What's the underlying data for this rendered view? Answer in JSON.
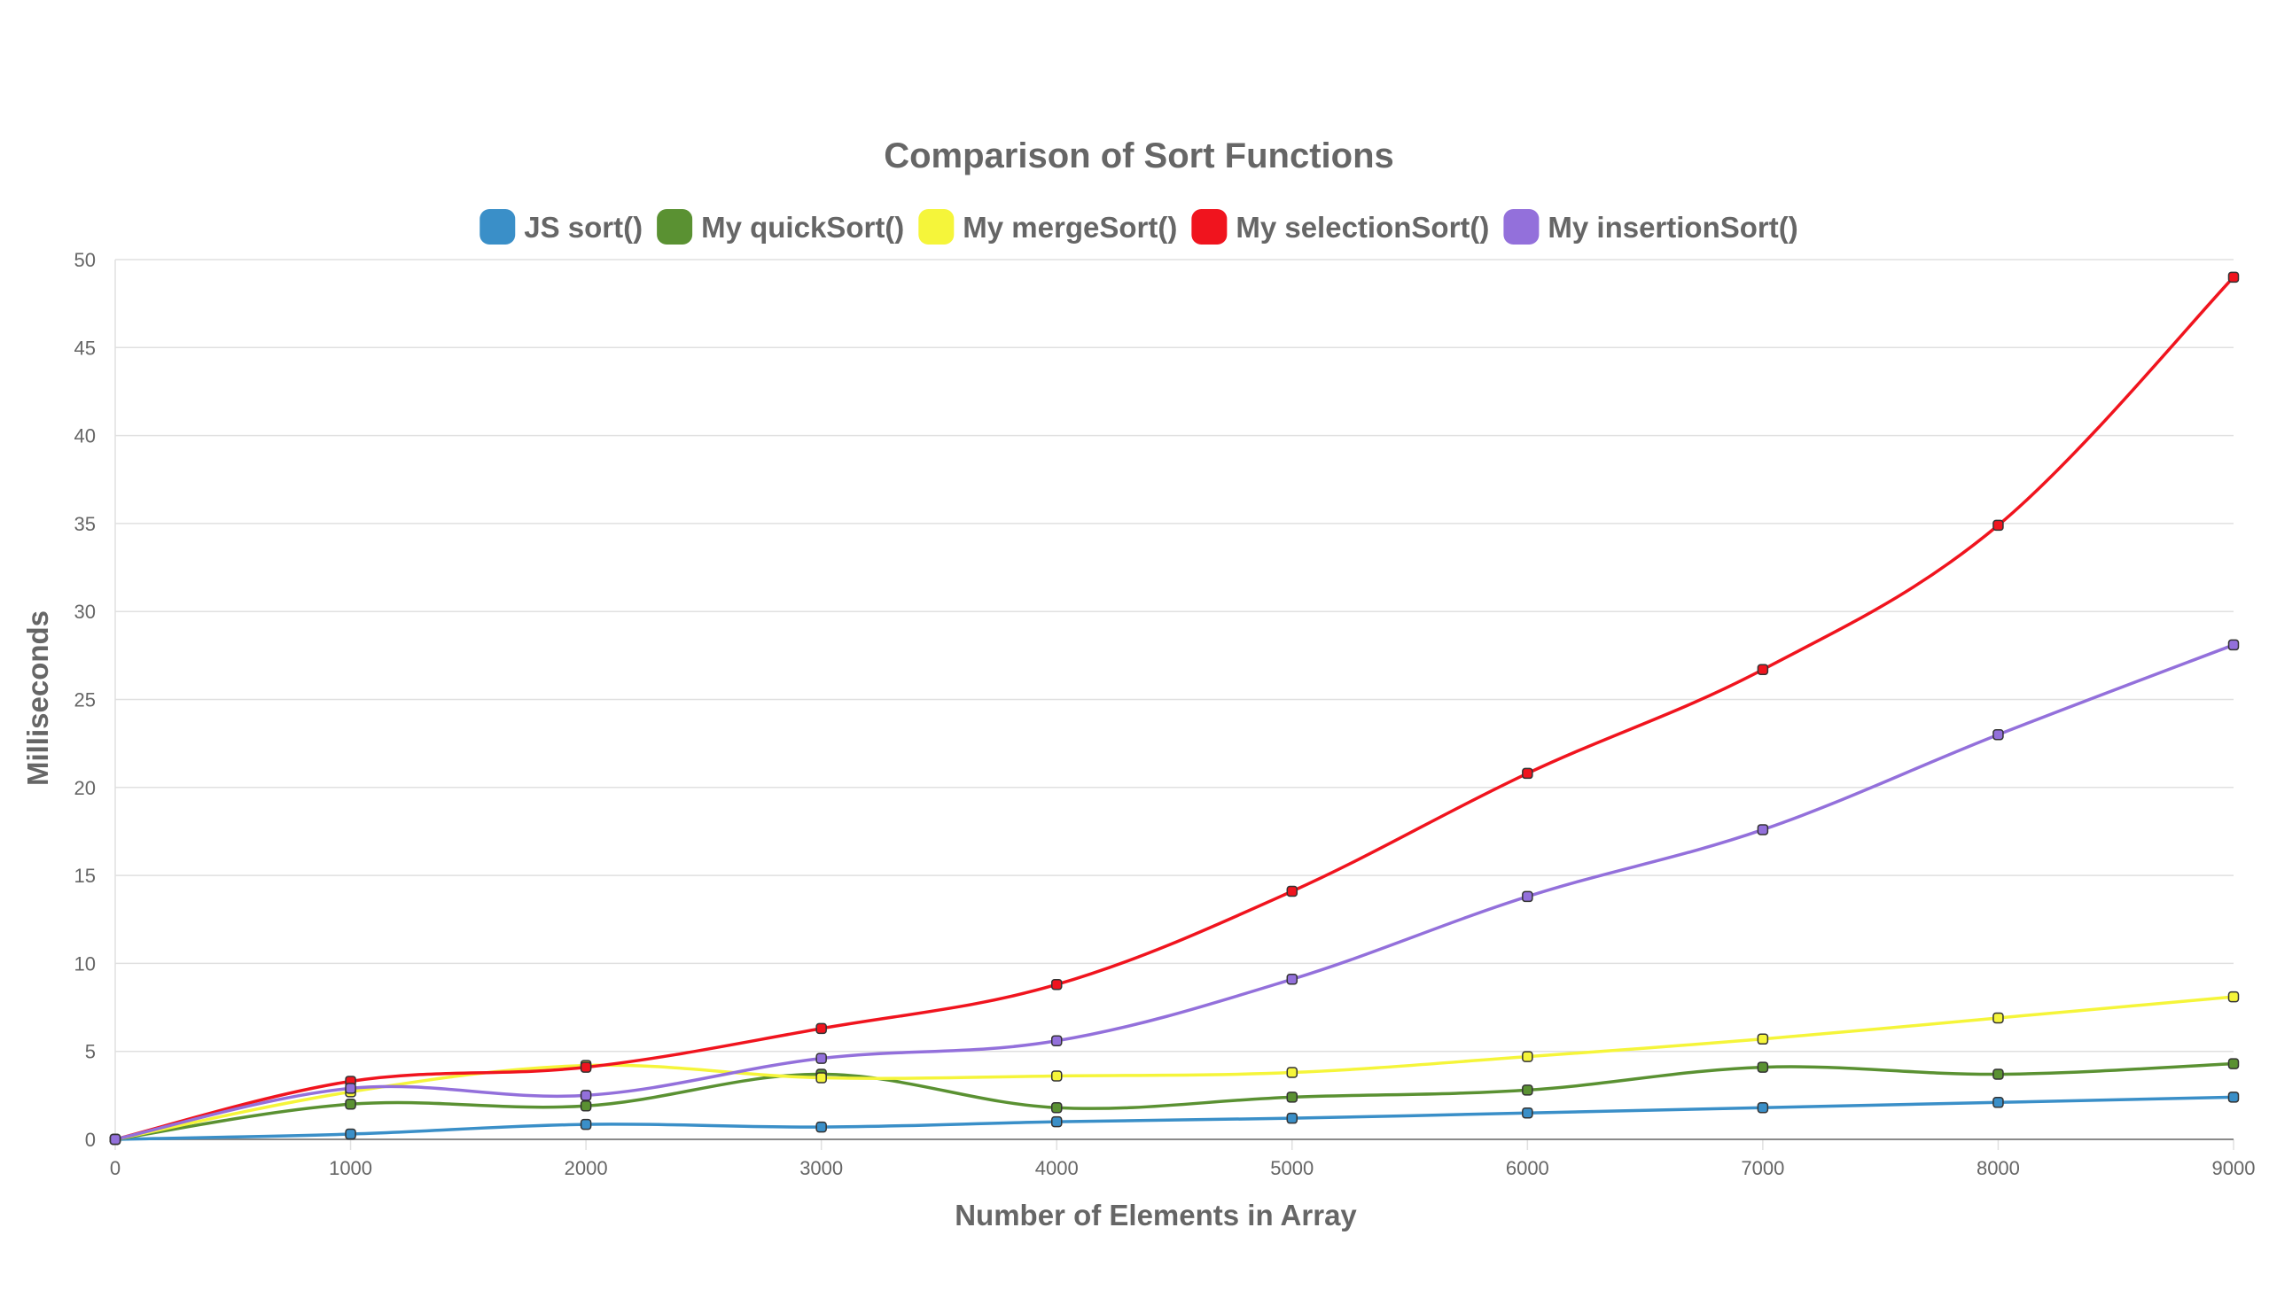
{
  "chart_data": {
    "type": "line",
    "title": "Comparison of Sort Functions",
    "xlabel": "Number of Elements in Array",
    "ylabel": "Milliseconds",
    "x": [
      0,
      1000,
      2000,
      3000,
      4000,
      5000,
      6000,
      7000,
      8000,
      9000
    ],
    "xlim": [
      0,
      9000
    ],
    "ylim": [
      0,
      50
    ],
    "x_ticks": [
      "0",
      "1000",
      "2000",
      "3000",
      "4000",
      "5000",
      "6000",
      "7000",
      "8000",
      "9000"
    ],
    "y_ticks": [
      "0",
      "5",
      "10",
      "15",
      "20",
      "25",
      "30",
      "35",
      "40",
      "45",
      "50"
    ],
    "grid": true,
    "legend_position": "top",
    "series": [
      {
        "name": "JS sort()",
        "color": "#3a8fc8",
        "values": [
          0,
          0.3,
          0.85,
          0.7,
          1.0,
          1.2,
          1.5,
          1.8,
          2.1,
          2.4
        ]
      },
      {
        "name": "My quickSort()",
        "color": "#5a9132",
        "values": [
          0,
          2.0,
          1.9,
          3.7,
          1.8,
          2.4,
          2.8,
          4.1,
          3.7,
          4.3
        ]
      },
      {
        "name": "My mergeSort()",
        "color": "#f5f53a",
        "values": [
          0,
          2.7,
          4.2,
          3.5,
          3.6,
          3.8,
          4.7,
          5.7,
          6.9,
          8.1
        ]
      },
      {
        "name": "My selectionSort()",
        "color": "#f0141e",
        "values": [
          0,
          3.3,
          4.1,
          6.3,
          8.8,
          14.1,
          20.8,
          26.7,
          34.9,
          49.0
        ]
      },
      {
        "name": "My insertionSort()",
        "color": "#9370db",
        "values": [
          0,
          2.9,
          2.5,
          4.6,
          5.6,
          9.1,
          13.8,
          17.6,
          23.0,
          28.1
        ]
      }
    ]
  }
}
